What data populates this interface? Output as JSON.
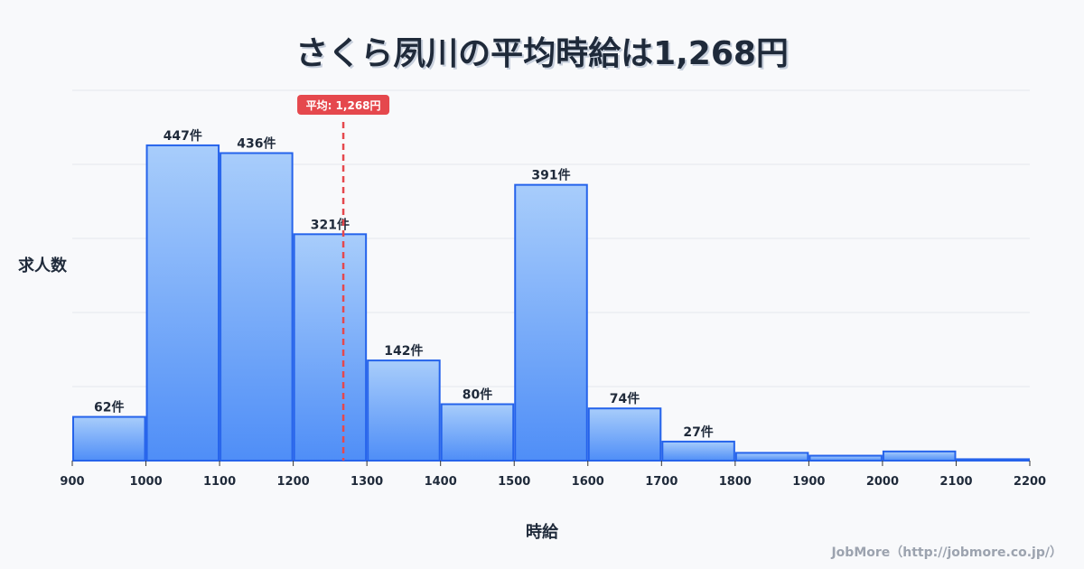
{
  "chart_data": {
    "type": "bar",
    "title": "さくら夙川の平均時給は1,268円",
    "xlabel": "時給",
    "ylabel": "求人数",
    "bins": [
      900,
      1000,
      1100,
      1200,
      1300,
      1400,
      1500,
      1600,
      1700,
      1800,
      1900,
      2000,
      2100,
      2200
    ],
    "categories": [
      "900-1000",
      "1000-1100",
      "1100-1200",
      "1200-1300",
      "1300-1400",
      "1400-1500",
      "1500-1600",
      "1600-1700",
      "1700-1800",
      "1800-1900",
      "1900-2000",
      "2000-2100",
      "2100-2200"
    ],
    "values": [
      62,
      447,
      436,
      321,
      142,
      80,
      391,
      74,
      27,
      11,
      7,
      13,
      2
    ],
    "labels": [
      "62件",
      "447件",
      "436件",
      "321件",
      "142件",
      "80件",
      "391件",
      "74件",
      "27件",
      "",
      "",
      "",
      ""
    ],
    "x_ticks": [
      "900",
      "1000",
      "1100",
      "1200",
      "1300",
      "1400",
      "1500",
      "1600",
      "1700",
      "1800",
      "1900",
      "2000",
      "2100",
      "2200"
    ],
    "xlim": [
      900,
      2200
    ],
    "ylim": [
      0,
      525
    ],
    "grid": true,
    "mean": {
      "value": 1268,
      "label": "平均: 1,268円",
      "color": "#e5484d"
    },
    "bar_color_top": "#a8cdfb",
    "bar_color_bottom": "#4f8ef7",
    "bar_edge": "#2563eb"
  },
  "credit": "JobMore（http://jobmore.co.jp/）"
}
